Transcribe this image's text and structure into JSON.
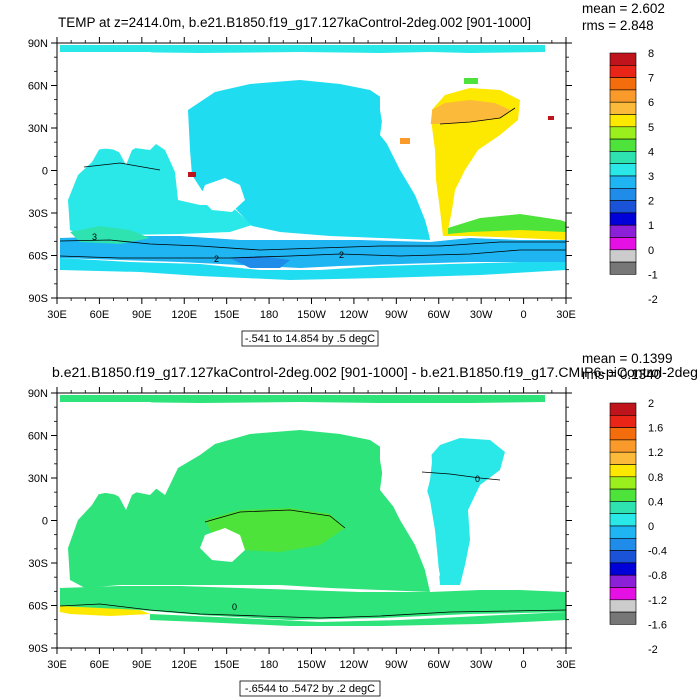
{
  "panels": [
    {
      "id": "top",
      "title": "TEMP at z=2414.0m, b.e21.B1850.f19_g17.127kaControl-2deg.002 [901-1000]",
      "stats": {
        "mean": "mean = 2.602",
        "rms": "rms = 2.848"
      },
      "contour_info": "-.541 to 14.854 by .5 degC",
      "lat_ticks": [
        "90N",
        "60N",
        "30N",
        "0",
        "30S",
        "60S",
        "90S"
      ],
      "lon_ticks": [
        "30E",
        "60E",
        "90E",
        "120E",
        "150E",
        "180",
        "150W",
        "120W",
        "90W",
        "60W",
        "30W",
        "0",
        "30E"
      ],
      "colorbar": {
        "labels": [
          "8",
          "7",
          "6",
          "5",
          "4",
          "3",
          "2",
          "1",
          "0",
          "-1",
          "-2"
        ],
        "colors": [
          "#c0141c",
          "#e82516",
          "#f46d0d",
          "#f99a2b",
          "#fcba3a",
          "#fde800",
          "#9bef1c",
          "#4de33a",
          "#2ee3b0",
          "#2ae8e8",
          "#1fb4f2",
          "#1e8ce8",
          "#1a52d8",
          "#0000d8",
          "#8c1fd8",
          "#e410e4",
          "#cccccc",
          "#777777"
        ],
        "contour_labels": [
          "3",
          "2",
          "2"
        ]
      }
    },
    {
      "id": "bottom",
      "title": "b.e21.B1850.f19_g17.127kaControl-2deg.002 [901-1000] - b.e21.B1850.f19_g17.CMIP6-piControl-2deg",
      "stats": {
        "mean": "mean = 0.1399",
        "rms": "rms = 0.1340"
      },
      "contour_info": "-.6544 to .5472 by .2 degC",
      "lat_ticks": [
        "90N",
        "60N",
        "30N",
        "0",
        "30S",
        "60S",
        "90S"
      ],
      "lon_ticks": [
        "30E",
        "60E",
        "90E",
        "120E",
        "150E",
        "180",
        "150W",
        "120W",
        "90W",
        "60W",
        "30W",
        "0",
        "30E"
      ],
      "colorbar": {
        "labels": [
          "2",
          "1.6",
          "1.2",
          "0.8",
          "0.4",
          "0",
          "-0.4",
          "-0.8",
          "-1.2",
          "-1.6",
          "-2"
        ],
        "colors": [
          "#c0141c",
          "#e82516",
          "#f46d0d",
          "#f99a2b",
          "#fcba3a",
          "#fde800",
          "#9bef1c",
          "#4de33a",
          "#2ee3b0",
          "#2ae8e8",
          "#1fb4f2",
          "#1e8ce8",
          "#1a52d8",
          "#0000d8",
          "#8c1fd8",
          "#e410e4",
          "#cccccc",
          "#777777"
        ],
        "contour_labels": [
          "0",
          "0"
        ]
      }
    }
  ],
  "fill_colors": {
    "cyan_light": "#2ae8e8",
    "cyan_mid": "#1fdcf0",
    "sky": "#1fb4f2",
    "blue": "#1e8ce8",
    "green": "#2ee37a",
    "mint": "#2ee3b0",
    "yellow": "#fde800",
    "orange": "#fcba3a",
    "red": "#c0141c",
    "lime": "#4de33a"
  }
}
